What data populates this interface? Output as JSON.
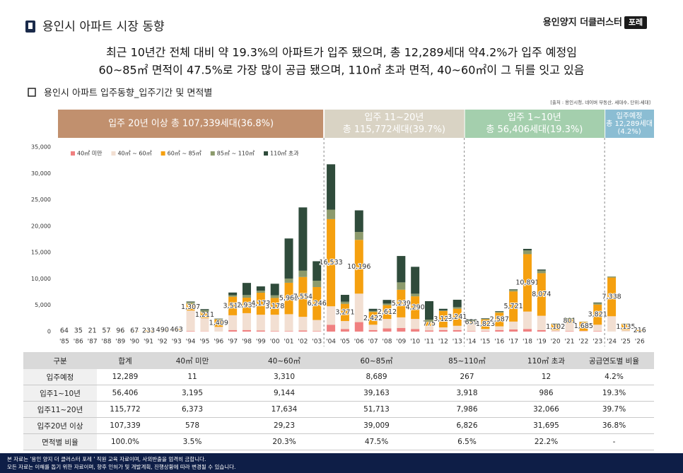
{
  "header": {
    "title": "용인시 아파트 시장 동향",
    "brand": "용인양지 더클러스터",
    "brand_tag": "포레"
  },
  "headline": [
    "최근 10년간 전체 대비 약 19.3%의 아파트가 입주 됐으며,  총 12,289세대 약4.2%가 입주 예정임",
    "60~85㎡ 면적이 47.5%로 가장 많이 공급 됐으며, 110㎡ 초과 면적, 40~60㎡이 그 뒤를 잇고 있음"
  ],
  "section_title": "용인시 아파트 입주동향_입주기간 및 면적별",
  "source": "[출처 : 용인시청, 네이버 부동산, 세대수, 단위:세대]",
  "period_bands": [
    {
      "lines": [
        "입주 20년 이상 총 107,339세대(36.8%)"
      ],
      "color": "#c1906e"
    },
    {
      "lines": [
        "입주 11~20년",
        "총 115,772세대(39.7%)"
      ],
      "color": "#d9d3c4"
    },
    {
      "lines": [
        "입주 1~10년",
        "총 56,406세대(19.3%)"
      ],
      "color": "#a4cfad"
    },
    {
      "lines": [
        "입주예정",
        "총 12,289세대",
        "(4.2%)"
      ],
      "color": "#8bbdd3"
    }
  ],
  "chart_data": {
    "type": "stacked_bar",
    "categories": [
      "'85",
      "'86",
      "'87",
      "'88",
      "'89",
      "'90",
      "'91",
      "'92",
      "'93",
      "'94",
      "'95",
      "'96",
      "'97",
      "'98",
      "'99",
      "'00",
      "'01",
      "'02",
      "'03",
      "'04",
      "'05",
      "'06",
      "'07",
      "'08",
      "'09",
      "'10",
      "'11",
      "'12",
      "'13",
      "'14",
      "'15",
      "'16",
      "'17",
      "'18",
      "'19",
      "'20",
      "'21",
      "'22",
      "'23",
      "'24",
      "'25",
      "'26"
    ],
    "ylim": [
      0,
      35000
    ],
    "yticks": [
      0,
      {
        "value": 5000,
        "label": "5,000"
      },
      {
        "value": 10000,
        "label": "10,000"
      },
      {
        "value": 15000,
        "label": "15,000"
      },
      {
        "value": 20000,
        "label": "20,000"
      },
      {
        "value": 25000,
        "label": "25,000"
      },
      {
        "value": 30000,
        "label": "30,000"
      },
      {
        "value": 35000,
        "label": "35,000"
      }
    ],
    "legend": "top-left",
    "series": [
      {
        "name": "40㎡ 미만",
        "color": "#f08080",
        "values": [
          0,
          0,
          0,
          0,
          0,
          0,
          0,
          0,
          0,
          100,
          50,
          0,
          300,
          300,
          200,
          100,
          100,
          200,
          100,
          1300,
          500,
          1800,
          300,
          600,
          700,
          500,
          200,
          300,
          300,
          100,
          100,
          300,
          400,
          500,
          300,
          50,
          100,
          50,
          100,
          10,
          1,
          0
        ]
      },
      {
        "name": "40㎡ ~ 60㎡",
        "color": "#f2dfd2",
        "values": [
          0,
          0,
          0,
          0,
          0,
          0,
          0,
          0,
          100,
          3900,
          2500,
          900,
          2800,
          3200,
          3000,
          3100,
          3200,
          2600,
          2100,
          3500,
          1500,
          5400,
          1000,
          1800,
          2000,
          1900,
          900,
          500,
          800,
          1300,
          400,
          700,
          1500,
          3300,
          2700,
          250,
          1500,
          100,
          1200,
          2900,
          300,
          100
        ]
      },
      {
        "name": "60㎡ ~ 85㎡",
        "color": "#f5a00f",
        "values": [
          64,
          35,
          21,
          57,
          96,
          67,
          233,
          490,
          463,
          1307,
          1211,
          1409,
          3510,
          2933,
          4173,
          3178,
          5962,
          7554,
          6246,
          16533,
          3271,
          10196,
          2422,
          2612,
          5239,
          4290,
          775,
          3123,
          3241,
          659,
          1823,
          2587,
          5721,
          10891,
          8074,
          1102,
          801,
          1685,
          3821,
          7338,
          1135,
          216
        ],
        "value_labels": [
          "64",
          "35",
          "21",
          "57",
          "96",
          "67",
          "233",
          "490",
          "463",
          "1,307",
          "1,211",
          "1,409",
          "3,510",
          "2,933",
          "4,173",
          "3,178",
          "5,962",
          "7,554",
          "6,246",
          "16,533",
          "3,271",
          "10,196",
          "2,422",
          "2,612",
          "5,239",
          "4,290",
          "775",
          "3,123",
          "3,241",
          "659",
          "1,823",
          "2,587",
          "5,721",
          "10,891",
          "8,074",
          "1,102",
          "801",
          "1,685",
          "3,821",
          "7,338",
          "1,135",
          "216"
        ]
      },
      {
        "name": "85㎡ ~ 110㎡",
        "color": "#8c9a6c",
        "values": [
          0,
          0,
          0,
          0,
          0,
          0,
          0,
          0,
          0,
          300,
          300,
          100,
          300,
          500,
          400,
          500,
          800,
          1200,
          1200,
          1800,
          400,
          1500,
          200,
          300,
          1400,
          500,
          400,
          100,
          300,
          100,
          100,
          200,
          300,
          700,
          500,
          50,
          100,
          50,
          300,
          200,
          60,
          0
        ]
      },
      {
        "name": "110㎡ 초과",
        "color": "#2f4b3b",
        "values": [
          0,
          0,
          0,
          0,
          0,
          0,
          0,
          0,
          0,
          100,
          200,
          50,
          500,
          2300,
          800,
          2200,
          7600,
          12000,
          3700,
          8600,
          1300,
          4100,
          400,
          700,
          5000,
          5100,
          3500,
          300,
          1400,
          100,
          100,
          100,
          100,
          300,
          200,
          50,
          0,
          0,
          100,
          10,
          2,
          0
        ]
      }
    ]
  },
  "table": {
    "header": [
      "구분",
      "합계",
      "40㎡ 미만",
      "40~60㎡",
      "60~85㎡",
      "85~110㎡",
      "110㎡ 초과",
      "공급연도별 비율"
    ],
    "rows": [
      [
        "입주예정",
        "12,289",
        "11",
        "3,310",
        "8,689",
        "267",
        "12",
        "4.2%"
      ],
      [
        "입주1~10년",
        "56,406",
        "3,195",
        "9,144",
        "39,163",
        "3,918",
        "986",
        "19.3%"
      ],
      [
        "입주11~20년",
        "115,772",
        "6,373",
        "17,634",
        "51,713",
        "7,986",
        "32,066",
        "39.7%"
      ],
      [
        "입주20년 이상",
        "107,339",
        "578",
        "29,23",
        "39,009",
        "6,826",
        "31,695",
        "36.8%"
      ],
      [
        "면적별 비율",
        "100.0%",
        "3.5%",
        "20.3%",
        "47.5%",
        "6.5%",
        "22.2%",
        "-"
      ]
    ]
  },
  "footer": [
    "본 자료는 '용인 양지 더 클러스터 포레 ' 직원 교육 자료이며, 사외반출을 엄격히 금합니다.",
    "모든 자료는 이해를 돕기 위한 자료이며, 향후 인허가 및 개발계획, 진행상황에 따라 변경될 수 있습니다."
  ]
}
